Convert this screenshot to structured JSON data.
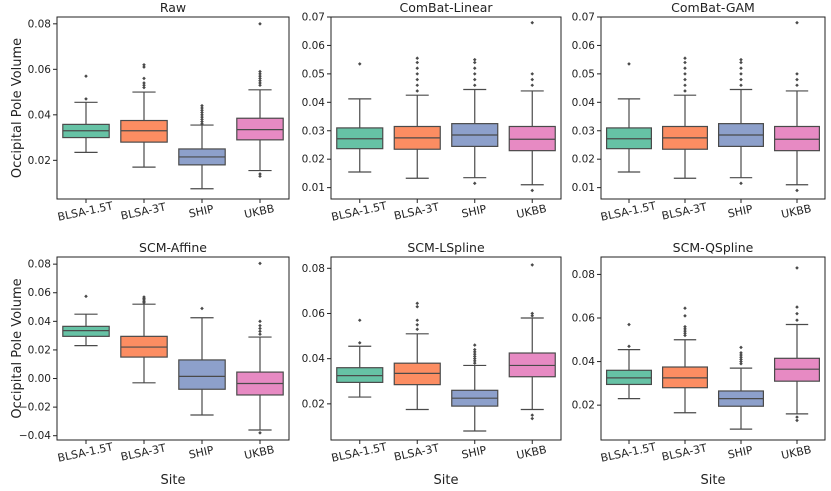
{
  "figure": {
    "ylabel": "Occipital Pole Volume",
    "xlabel": "Site"
  },
  "chart_data": [
    {
      "type": "box",
      "title": "Raw",
      "categories": [
        "BLSA-1.5T",
        "BLSA-3T",
        "SHIP",
        "UKBB"
      ],
      "ylim": [
        0.003,
        0.083
      ],
      "yticks": [
        0.02,
        0.04,
        0.06,
        0.08
      ],
      "ytick_labels": [
        "0.02",
        "0.04",
        "0.06",
        "0.08"
      ],
      "xlabel": "",
      "ylabel": "Occipital Pole Volume",
      "boxes": [
        {
          "q1": 0.03,
          "median": 0.033,
          "q3": 0.0358,
          "whislo": 0.0235,
          "whishi": 0.0455,
          "fliers": [
            0.047,
            0.057
          ]
        },
        {
          "q1": 0.028,
          "median": 0.033,
          "q3": 0.0375,
          "whislo": 0.017,
          "whishi": 0.05,
          "fliers": [
            0.052,
            0.053,
            0.054,
            0.056,
            0.061,
            0.062
          ]
        },
        {
          "q1": 0.018,
          "median": 0.0215,
          "q3": 0.025,
          "whislo": 0.0075,
          "whishi": 0.0355,
          "fliers": [
            0.036,
            0.037,
            0.038,
            0.039,
            0.04,
            0.041,
            0.042,
            0.043,
            0.044
          ]
        },
        {
          "q1": 0.029,
          "median": 0.0335,
          "q3": 0.0385,
          "whislo": 0.0155,
          "whishi": 0.051,
          "fliers": [
            0.013,
            0.014,
            0.053,
            0.054,
            0.055,
            0.056,
            0.057,
            0.058,
            0.059,
            0.08
          ]
        }
      ]
    },
    {
      "type": "box",
      "title": "ComBat-Linear",
      "categories": [
        "BLSA-1.5T",
        "BLSA-3T",
        "SHIP",
        "UKBB"
      ],
      "ylim": [
        0.006,
        0.07
      ],
      "yticks": [
        0.01,
        0.02,
        0.03,
        0.04,
        0.05,
        0.06,
        0.07
      ],
      "ytick_labels": [
        "0.01",
        "0.02",
        "0.03",
        "0.04",
        "0.05",
        "0.06",
        "0.07"
      ],
      "xlabel": "",
      "ylabel": "",
      "boxes": [
        {
          "q1": 0.0237,
          "median": 0.0272,
          "q3": 0.031,
          "whislo": 0.0155,
          "whishi": 0.0412,
          "fliers": [
            0.0535
          ]
        },
        {
          "q1": 0.0235,
          "median": 0.0275,
          "q3": 0.0315,
          "whislo": 0.0133,
          "whishi": 0.0425,
          "fliers": [
            0.044,
            0.046,
            0.048,
            0.05,
            0.052,
            0.054,
            0.0555
          ]
        },
        {
          "q1": 0.0245,
          "median": 0.0285,
          "q3": 0.0325,
          "whislo": 0.0135,
          "whishi": 0.0445,
          "fliers": [
            0.0115,
            0.046,
            0.048,
            0.05,
            0.052,
            0.054,
            0.055
          ]
        },
        {
          "q1": 0.023,
          "median": 0.027,
          "q3": 0.0315,
          "whislo": 0.011,
          "whishi": 0.044,
          "fliers": [
            0.009,
            0.046,
            0.048,
            0.05,
            0.068
          ]
        }
      ]
    },
    {
      "type": "box",
      "title": "ComBat-GAM",
      "categories": [
        "BLSA-1.5T",
        "BLSA-3T",
        "SHIP",
        "UKBB"
      ],
      "ylim": [
        0.006,
        0.07
      ],
      "yticks": [
        0.01,
        0.02,
        0.03,
        0.04,
        0.05,
        0.06,
        0.07
      ],
      "ytick_labels": [
        "0.01",
        "0.02",
        "0.03",
        "0.04",
        "0.05",
        "0.06",
        "0.07"
      ],
      "xlabel": "",
      "ylabel": "",
      "boxes": [
        {
          "q1": 0.0237,
          "median": 0.0272,
          "q3": 0.031,
          "whislo": 0.0155,
          "whishi": 0.0412,
          "fliers": [
            0.0535
          ]
        },
        {
          "q1": 0.0235,
          "median": 0.0275,
          "q3": 0.0315,
          "whislo": 0.0133,
          "whishi": 0.0425,
          "fliers": [
            0.044,
            0.046,
            0.048,
            0.05,
            0.052,
            0.054,
            0.0555
          ]
        },
        {
          "q1": 0.0245,
          "median": 0.0285,
          "q3": 0.0325,
          "whislo": 0.0135,
          "whishi": 0.0445,
          "fliers": [
            0.0115,
            0.046,
            0.048,
            0.05,
            0.052,
            0.054,
            0.055
          ]
        },
        {
          "q1": 0.023,
          "median": 0.027,
          "q3": 0.0315,
          "whislo": 0.011,
          "whishi": 0.044,
          "fliers": [
            0.009,
            0.046,
            0.048,
            0.05,
            0.068
          ]
        }
      ]
    },
    {
      "type": "box",
      "title": "SCM-Affine",
      "categories": [
        "BLSA-1.5T",
        "BLSA-3T",
        "SHIP",
        "UKBB"
      ],
      "ylim": [
        -0.043,
        0.085
      ],
      "yticks": [
        -0.04,
        -0.02,
        0.0,
        0.02,
        0.04,
        0.06,
        0.08
      ],
      "ytick_labels": [
        "−0.04",
        "−0.02",
        "0.00",
        "0.02",
        "0.04",
        "0.06",
        "0.08"
      ],
      "xlabel": "Site",
      "ylabel": "Occipital Pole Volume",
      "boxes": [
        {
          "q1": 0.0295,
          "median": 0.0335,
          "q3": 0.0365,
          "whislo": 0.023,
          "whishi": 0.045,
          "fliers": [
            0.0575
          ]
        },
        {
          "q1": 0.015,
          "median": 0.022,
          "q3": 0.0295,
          "whislo": -0.003,
          "whishi": 0.052,
          "fliers": [
            0.053,
            0.054,
            0.055,
            0.056,
            0.057
          ]
        },
        {
          "q1": -0.0075,
          "median": 0.0015,
          "q3": 0.013,
          "whislo": -0.0255,
          "whishi": 0.0425,
          "fliers": [
            0.049
          ]
        },
        {
          "q1": -0.0115,
          "median": -0.0035,
          "q3": 0.0045,
          "whislo": -0.036,
          "whishi": 0.029,
          "fliers": [
            -0.038,
            0.031,
            0.033,
            0.035,
            0.037,
            0.04,
            0.0805
          ]
        }
      ]
    },
    {
      "type": "box",
      "title": "SCM-LSpline",
      "categories": [
        "BLSA-1.5T",
        "BLSA-3T",
        "SHIP",
        "UKBB"
      ],
      "ylim": [
        0.004,
        0.085
      ],
      "yticks": [
        0.02,
        0.04,
        0.06,
        0.08
      ],
      "ytick_labels": [
        "0.02",
        "0.04",
        "0.06",
        "0.08"
      ],
      "xlabel": "Site",
      "ylabel": "",
      "boxes": [
        {
          "q1": 0.0295,
          "median": 0.0325,
          "q3": 0.036,
          "whislo": 0.023,
          "whishi": 0.0455,
          "fliers": [
            0.047,
            0.057
          ]
        },
        {
          "q1": 0.0285,
          "median": 0.0335,
          "q3": 0.038,
          "whislo": 0.0175,
          "whishi": 0.051,
          "fliers": [
            0.053,
            0.055,
            0.057,
            0.063,
            0.0645
          ]
        },
        {
          "q1": 0.019,
          "median": 0.0225,
          "q3": 0.026,
          "whislo": 0.008,
          "whishi": 0.037,
          "fliers": [
            0.038,
            0.039,
            0.04,
            0.041,
            0.042,
            0.043,
            0.044,
            0.046
          ]
        },
        {
          "q1": 0.032,
          "median": 0.037,
          "q3": 0.0425,
          "whislo": 0.0175,
          "whishi": 0.058,
          "fliers": [
            0.0135,
            0.015,
            0.059,
            0.06,
            0.0815
          ]
        }
      ]
    },
    {
      "type": "box",
      "title": "SCM-QSpline",
      "categories": [
        "BLSA-1.5T",
        "BLSA-3T",
        "SHIP",
        "UKBB"
      ],
      "ylim": [
        0.004,
        0.088
      ],
      "yticks": [
        0.02,
        0.04,
        0.06,
        0.08
      ],
      "ytick_labels": [
        "0.02",
        "0.04",
        "0.06",
        "0.08"
      ],
      "xlabel": "Site",
      "ylabel": "",
      "boxes": [
        {
          "q1": 0.0295,
          "median": 0.0325,
          "q3": 0.036,
          "whislo": 0.023,
          "whishi": 0.0455,
          "fliers": [
            0.047,
            0.057
          ]
        },
        {
          "q1": 0.028,
          "median": 0.0325,
          "q3": 0.0375,
          "whislo": 0.0165,
          "whishi": 0.05,
          "fliers": [
            0.052,
            0.053,
            0.054,
            0.055,
            0.056,
            0.061,
            0.0645
          ]
        },
        {
          "q1": 0.0195,
          "median": 0.023,
          "q3": 0.0265,
          "whislo": 0.009,
          "whishi": 0.037,
          "fliers": [
            0.039,
            0.04,
            0.041,
            0.042,
            0.043,
            0.044,
            0.0465
          ]
        },
        {
          "q1": 0.031,
          "median": 0.0365,
          "q3": 0.0415,
          "whislo": 0.016,
          "whishi": 0.057,
          "fliers": [
            0.013,
            0.0145,
            0.059,
            0.062,
            0.065,
            0.083
          ]
        }
      ]
    }
  ],
  "colors": {
    "boxes": [
      "#66c2a5",
      "#fc8d62",
      "#8da0cb",
      "#e78ac3"
    ],
    "edge": "#4a4a4a",
    "axis": "#222222"
  }
}
